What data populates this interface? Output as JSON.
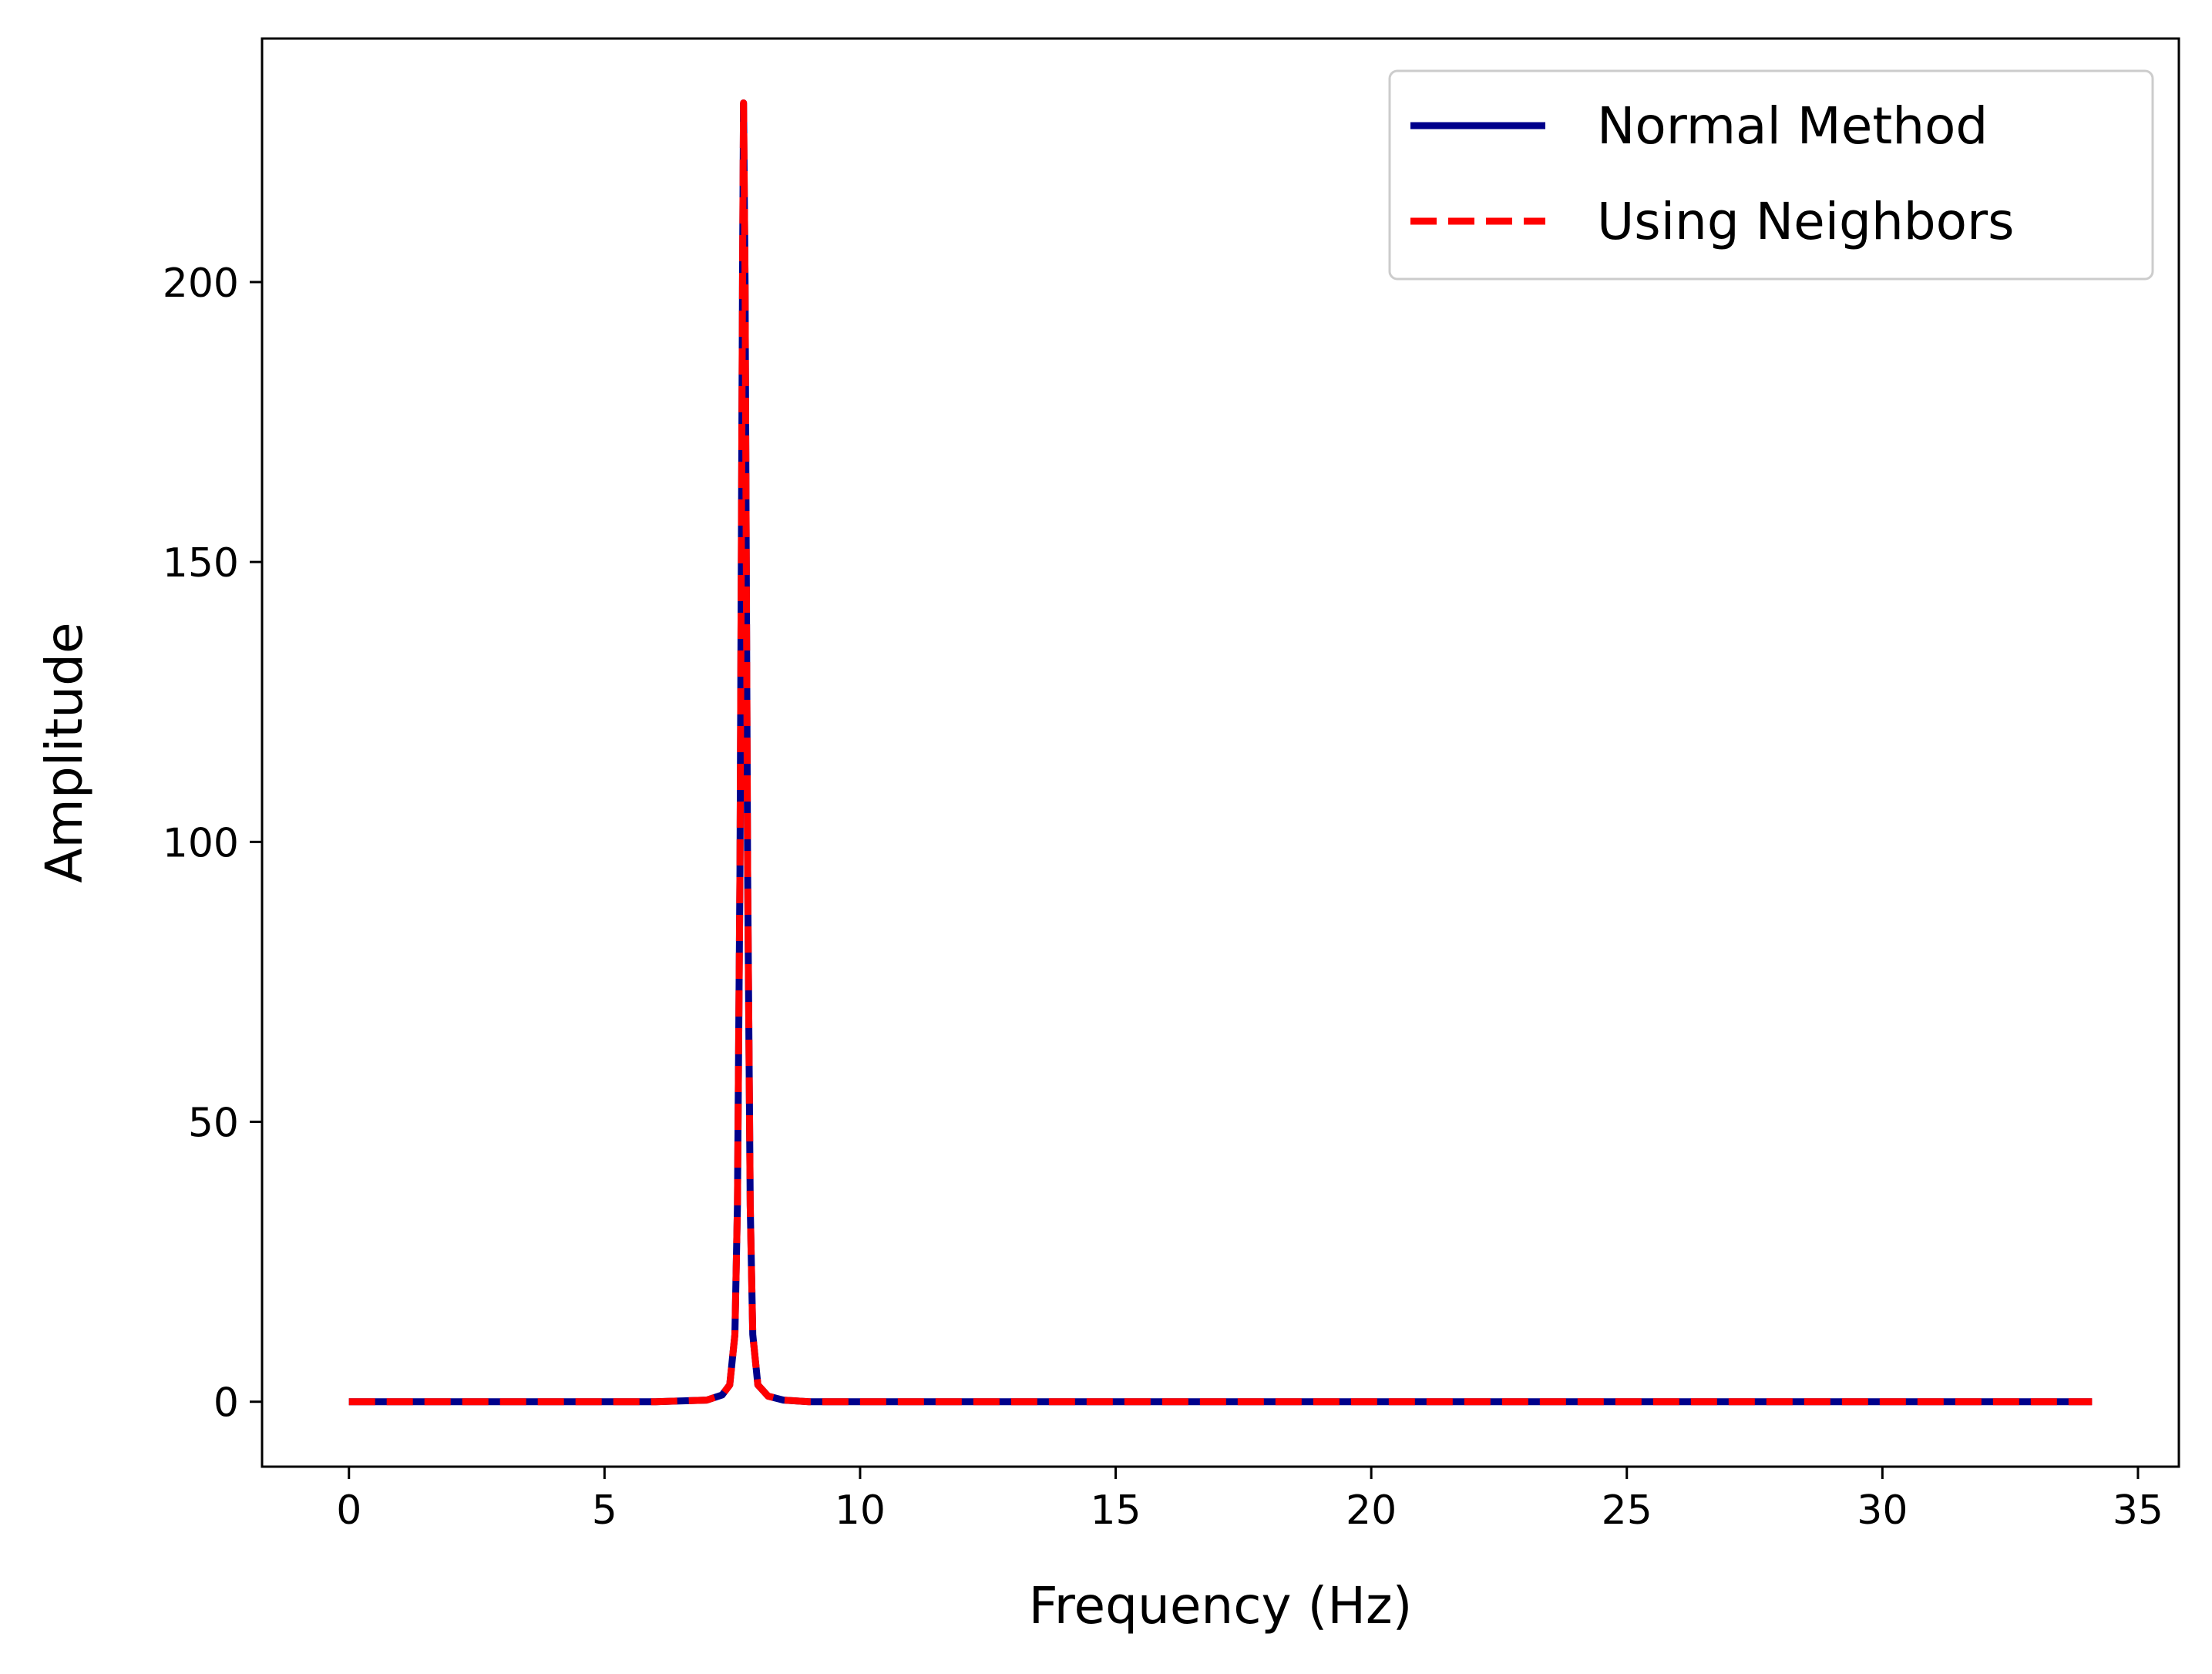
{
  "chart_data": {
    "type": "line",
    "title": "",
    "xlabel": "Frequency (Hz)",
    "ylabel": "Amplitude",
    "xlim": [
      -1.7,
      35.8
    ],
    "ylim": [
      -11.6,
      243.5
    ],
    "xticks": [
      0,
      5,
      10,
      15,
      20,
      25,
      30,
      35
    ],
    "yticks": [
      0,
      50,
      100,
      150,
      200
    ],
    "xtick_labels": [
      "0",
      "5",
      "10",
      "15",
      "20",
      "25",
      "30",
      "35"
    ],
    "ytick_labels": [
      "0",
      "50",
      "100",
      "150",
      "200"
    ],
    "grid": false,
    "legend_position": "top-right",
    "series": [
      {
        "name": "Normal Method",
        "color": "#00008b",
        "style": "solid",
        "x": [
          0,
          2,
          4,
          6,
          7.0,
          7.3,
          7.45,
          7.55,
          7.6,
          7.65,
          7.7,
          7.72,
          7.75,
          7.8,
          7.85,
          7.9,
          8.0,
          8.2,
          8.5,
          9,
          10,
          15,
          20,
          25,
          30,
          34.1
        ],
        "y": [
          0,
          0,
          0,
          0,
          0.3,
          1.2,
          3,
          12,
          35,
          95,
          200,
          232,
          200,
          95,
          35,
          12,
          3,
          1,
          0.3,
          0,
          0,
          0,
          0,
          0,
          0,
          0
        ]
      },
      {
        "name": "Using Neighbors",
        "color": "#ff0000",
        "style": "dashed",
        "x": [
          0,
          2,
          4,
          6,
          7.0,
          7.3,
          7.45,
          7.55,
          7.6,
          7.65,
          7.7,
          7.72,
          7.75,
          7.8,
          7.85,
          7.9,
          8.0,
          8.2,
          8.5,
          9,
          10,
          15,
          20,
          25,
          30,
          34.1
        ],
        "y": [
          0,
          0,
          0,
          0,
          0.3,
          1.2,
          3,
          12,
          35,
          95,
          200,
          232,
          200,
          95,
          35,
          12,
          3,
          1,
          0.3,
          0,
          0,
          0,
          0,
          0,
          0,
          0
        ]
      }
    ]
  }
}
